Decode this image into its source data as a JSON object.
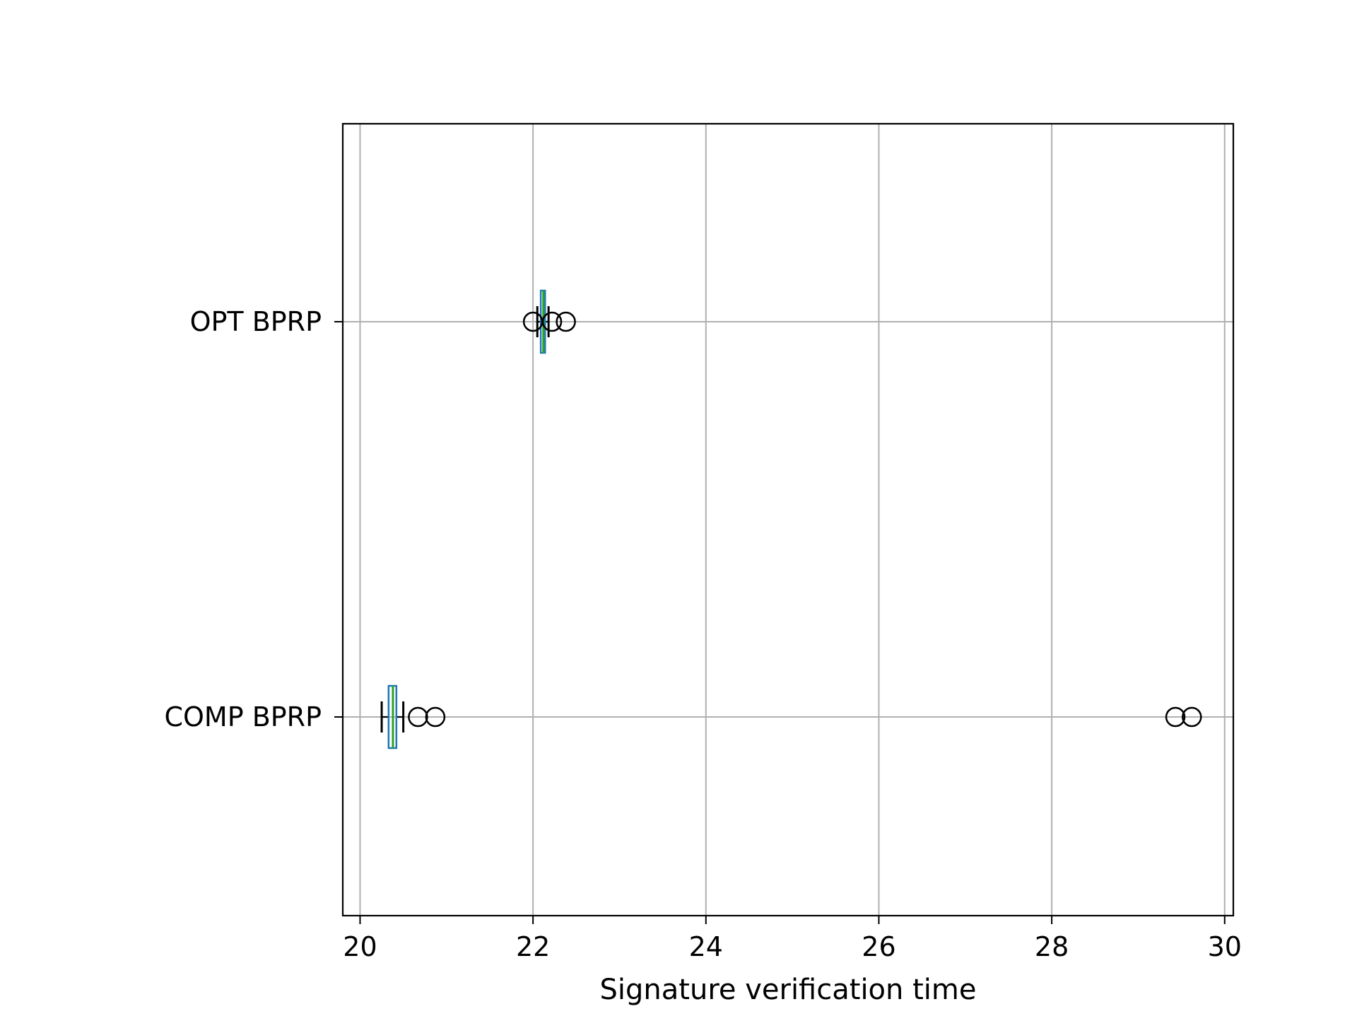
{
  "chart_data": {
    "type": "boxplot",
    "orientation": "horizontal",
    "title": "",
    "xlabel": "Signature verification time",
    "ylabel": "",
    "xlim": [
      19.8,
      30.1
    ],
    "xticks": [
      20,
      22,
      24,
      26,
      28,
      30
    ],
    "xtick_labels": [
      "20",
      "22",
      "24",
      "26",
      "28",
      "30"
    ],
    "grid": true,
    "categories": [
      "OPT BPRP",
      "COMP BPRP"
    ],
    "series": [
      {
        "name": "OPT BPRP",
        "whisker_low": 22.05,
        "q1": 22.09,
        "median": 22.12,
        "q3": 22.14,
        "whisker_high": 22.18,
        "outliers": [
          22.0,
          22.22,
          22.38
        ]
      },
      {
        "name": "COMP BPRP",
        "whisker_low": 20.25,
        "q1": 20.33,
        "median": 20.38,
        "q3": 20.42,
        "whisker_high": 20.5,
        "outliers": [
          20.67,
          20.87,
          29.43,
          29.62
        ]
      }
    ],
    "colors": {
      "box": "#1f77b4",
      "median": "#2ca02c",
      "whisker": "#000000",
      "grid": "#b0b0b0"
    }
  }
}
